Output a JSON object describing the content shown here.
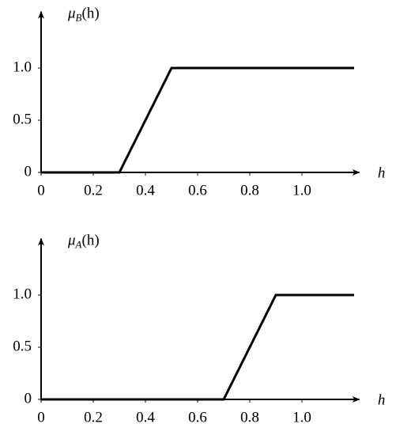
{
  "chart_data": [
    {
      "type": "line",
      "ylabel": {
        "base": "μ",
        "sub": "B",
        "rest": "(h)"
      },
      "xlabel": "h",
      "x": [
        0,
        0.3,
        0.5,
        1.2
      ],
      "series": [
        {
          "color": "#000000",
          "values": [
            0,
            0,
            1,
            1
          ]
        }
      ],
      "xlim": [
        0,
        1.22
      ],
      "ylim": [
        0,
        1.54
      ],
      "xticks": [
        0,
        0.2,
        0.4,
        0.6,
        0.8,
        {
          "value": 1,
          "label": "1.0"
        }
      ],
      "yticks": [
        0,
        0.5,
        {
          "value": 1,
          "label": "1.0"
        }
      ]
    },
    {
      "type": "line",
      "ylabel": {
        "base": "μ",
        "sub": "A",
        "rest": "(h)"
      },
      "xlabel": "h",
      "x": [
        0,
        0.7,
        0.9,
        1.2
      ],
      "series": [
        {
          "color": "#000000",
          "values": [
            0,
            0,
            1,
            1
          ]
        }
      ],
      "xlim": [
        0,
        1.22
      ],
      "ylim": [
        0,
        1.54
      ],
      "xticks": [
        0,
        0.2,
        0.4,
        0.6,
        0.8,
        {
          "value": 1,
          "label": "1.0"
        }
      ],
      "yticks": [
        0,
        0.5,
        {
          "value": 1,
          "label": "1.0"
        }
      ]
    }
  ]
}
